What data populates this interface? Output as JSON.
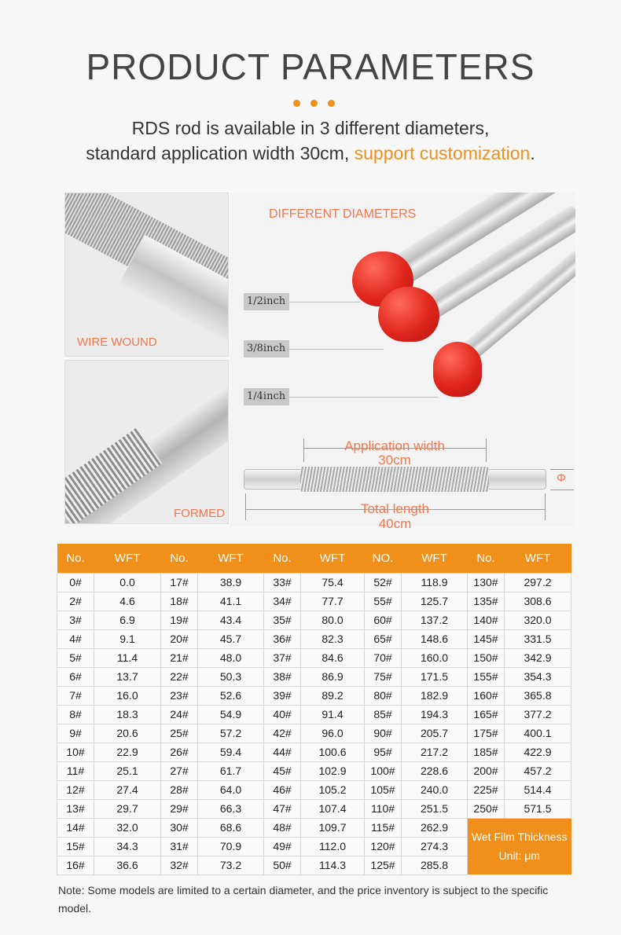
{
  "header": {
    "title": "PRODUCT PARAMETERS",
    "line1": "RDS rod is available in 3 different diameters,",
    "line2_prefix": "standard application width 30cm, ",
    "line2_highlight": "support customization",
    "line2_suffix": "."
  },
  "images": {
    "wire_wound": "WIRE WOUND",
    "formed": "FORMED",
    "diameters_title": "DIFFERENT DIAMETERS",
    "sizes": [
      "1/2inch",
      "3/8inch",
      "1/4inch"
    ],
    "application_width_label": "Application width",
    "application_width_value": "30cm",
    "total_length_label": "Total length",
    "total_length_value": "40cm",
    "diameter_symbol": "Φ"
  },
  "colors": {
    "accent": "#f0901a",
    "caption": "#f07850"
  },
  "table": {
    "headers": [
      "No.",
      "WFT",
      "No.",
      "WFT",
      "No.",
      "WFT",
      "NO.",
      "WFT",
      "No.",
      "WFT"
    ],
    "rows": [
      [
        "0#",
        "0.0",
        "17#",
        "38.9",
        "33#",
        "75.4",
        "52#",
        "118.9",
        "130#",
        "297.2"
      ],
      [
        "2#",
        "4.6",
        "18#",
        "41.1",
        "34#",
        "77.7",
        "55#",
        "125.7",
        "135#",
        "308.6"
      ],
      [
        "3#",
        "6.9",
        "19#",
        "43.4",
        "35#",
        "80.0",
        "60#",
        "137.2",
        "140#",
        "320.0"
      ],
      [
        "4#",
        "9.1",
        "20#",
        "45.7",
        "36#",
        "82.3",
        "65#",
        "148.6",
        "145#",
        "331.5"
      ],
      [
        "5#",
        "11.4",
        "21#",
        "48.0",
        "37#",
        "84.6",
        "70#",
        "160.0",
        "150#",
        "342.9"
      ],
      [
        "6#",
        "13.7",
        "22#",
        "50.3",
        "38#",
        "86.9",
        "75#",
        "171.5",
        "155#",
        "354.3"
      ],
      [
        "7#",
        "16.0",
        "23#",
        "52.6",
        "39#",
        "89.2",
        "80#",
        "182.9",
        "160#",
        "365.8"
      ],
      [
        "8#",
        "18.3",
        "24#",
        "54.9",
        "40#",
        "91.4",
        "85#",
        "194.3",
        "165#",
        "377.2"
      ],
      [
        "9#",
        "20.6",
        "25#",
        "57.2",
        "42#",
        "96.0",
        "90#",
        "205.7",
        "175#",
        "400.1"
      ],
      [
        "10#",
        "22.9",
        "26#",
        "59.4",
        "44#",
        "100.6",
        "95#",
        "217.2",
        "185#",
        "422.9"
      ],
      [
        "11#",
        "25.1",
        "27#",
        "61.7",
        "45#",
        "102.9",
        "100#",
        "228.6",
        "200#",
        "457.2"
      ],
      [
        "12#",
        "27.4",
        "28#",
        "64.0",
        "46#",
        "105.2",
        "105#",
        "240.0",
        "225#",
        "514.4"
      ],
      [
        "13#",
        "29.7",
        "29#",
        "66.3",
        "47#",
        "107.4",
        "110#",
        "251.5",
        "250#",
        "571.5"
      ],
      [
        "14#",
        "32.0",
        "30#",
        "68.6",
        "48#",
        "109.7",
        "115#",
        "262.9"
      ],
      [
        "15#",
        "34.3",
        "31#",
        "70.9",
        "49#",
        "112.0",
        "120#",
        "274.3"
      ],
      [
        "16#",
        "36.6",
        "32#",
        "73.2",
        "50#",
        "114.3",
        "125#",
        "285.8"
      ]
    ],
    "unit_line1": "Wet Film Thickness",
    "unit_line2": "Unit: μm"
  },
  "note": "Note: Some models are limited to a certain diameter, and the price inventory is subject to the specific model."
}
